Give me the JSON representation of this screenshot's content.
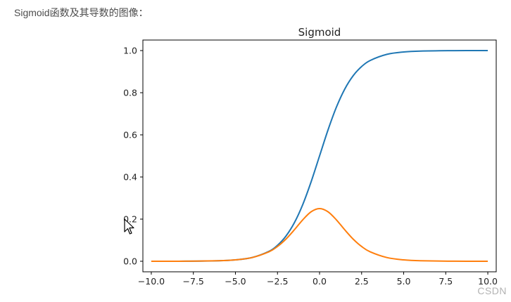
{
  "caption": "Sigmoid函数及其导数的图像：",
  "watermark": "CSDN",
  "cursor_icon": "mouse-pointer-icon",
  "chart_data": {
    "type": "line",
    "title": "Sigmoid",
    "xlabel": "",
    "ylabel": "",
    "xlim": [
      -10.5,
      10.5
    ],
    "ylim": [
      -0.05,
      1.05
    ],
    "xticks": [
      -10.0,
      -7.5,
      -5.0,
      -2.5,
      0.0,
      2.5,
      5.0,
      7.5,
      10.0
    ],
    "xtick_labels": [
      "−10.0",
      "−7.5",
      "−5.0",
      "−2.5",
      "0.0",
      "2.5",
      "5.0",
      "7.5",
      "10.0"
    ],
    "yticks": [
      0.0,
      0.2,
      0.4,
      0.6,
      0.8,
      1.0
    ],
    "ytick_labels": [
      "0.0",
      "0.2",
      "0.4",
      "0.6",
      "0.8",
      "1.0"
    ],
    "grid": false,
    "series": [
      {
        "color": "#1f77b4",
        "x": [
          -10,
          -8,
          -6,
          -5,
          -4,
          -3,
          -2.5,
          -2,
          -1.5,
          -1,
          -0.5,
          0,
          0.5,
          1,
          1.5,
          2,
          2.5,
          3,
          4,
          5,
          6,
          8,
          10
        ],
        "y": [
          0.0,
          0.0003,
          0.0025,
          0.0067,
          0.018,
          0.0474,
          0.0759,
          0.1192,
          0.1824,
          0.2689,
          0.3775,
          0.5,
          0.6225,
          0.7311,
          0.8176,
          0.8808,
          0.9241,
          0.9526,
          0.982,
          0.9933,
          0.9975,
          0.9997,
          1.0
        ]
      },
      {
        "color": "#ff7f0e",
        "x": [
          -10,
          -8,
          -6,
          -5,
          -4,
          -3,
          -2.5,
          -2,
          -1.5,
          -1,
          -0.5,
          0,
          0.5,
          1,
          1.5,
          2,
          2.5,
          3,
          4,
          5,
          6,
          8,
          10
        ],
        "y": [
          0.0,
          0.0003,
          0.0025,
          0.0066,
          0.0177,
          0.0452,
          0.0701,
          0.105,
          0.1491,
          0.1966,
          0.235,
          0.25,
          0.235,
          0.1966,
          0.1491,
          0.105,
          0.0701,
          0.0452,
          0.0177,
          0.0066,
          0.0025,
          0.0003,
          0.0
        ]
      }
    ]
  }
}
